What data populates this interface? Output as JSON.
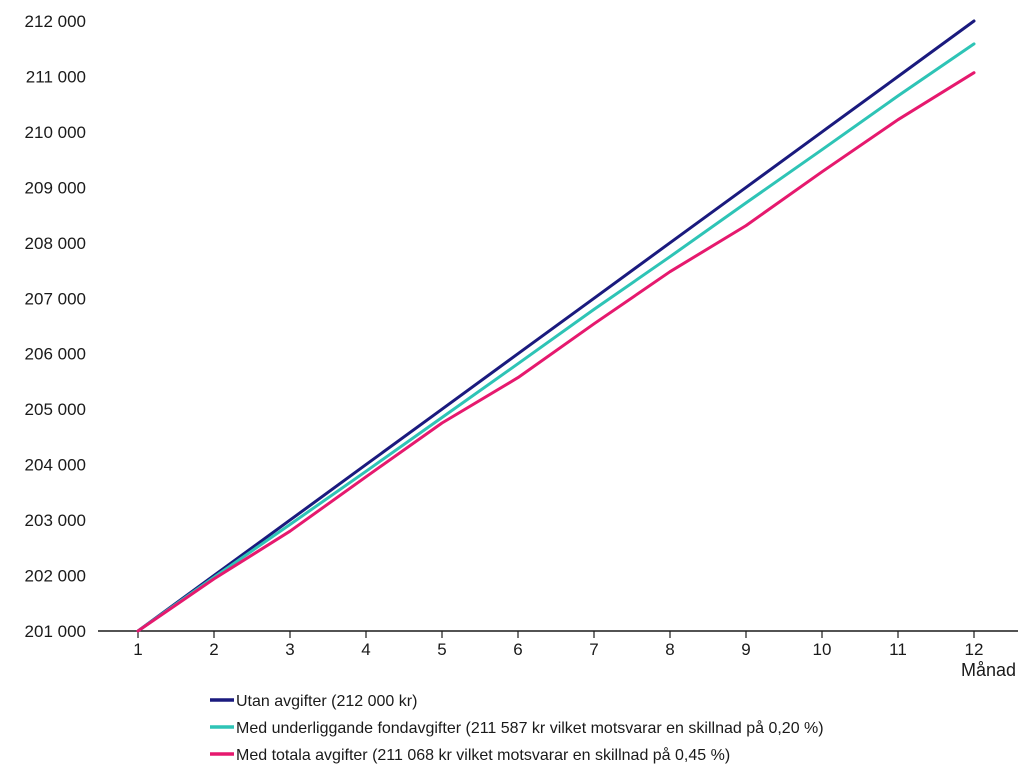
{
  "chart_data": {
    "type": "line",
    "title": "",
    "xlabel": "Månad",
    "ylabel": "",
    "x": [
      1,
      2,
      3,
      4,
      5,
      6,
      7,
      8,
      9,
      10,
      11,
      12
    ],
    "xlim": [
      0.5,
      12.5
    ],
    "ylim": [
      201000,
      212000
    ],
    "yticks": [
      201000,
      202000,
      203000,
      204000,
      205000,
      206000,
      207000,
      208000,
      209000,
      210000,
      211000,
      212000
    ],
    "ytick_labels": [
      "201 000",
      "202 000",
      "203 000",
      "204 000",
      "205 000",
      "206 000",
      "207 000",
      "208 000",
      "209 000",
      "210 000",
      "211 000",
      "212 000"
    ],
    "xtick_labels": [
      "1",
      "2",
      "3",
      "4",
      "5",
      "6",
      "7",
      "8",
      "9",
      "10",
      "11",
      "12"
    ],
    "grid": false,
    "legend_position": "bottom",
    "series": [
      {
        "name": "Utan avgifter (212 000 kr)",
        "color": "#1a1a7e",
        "values": [
          201000,
          202000,
          203000,
          204000,
          205000,
          206000,
          207000,
          208000,
          209000,
          210000,
          211000,
          212000
        ]
      },
      {
        "name": "Med underliggande fondavgifter (211 587 kr vilket motsvarar en skillnad på 0,20 %)",
        "color": "#2ec4b6",
        "values": [
          201000,
          201970,
          202920,
          203880,
          204850,
          205820,
          206800,
          207750,
          208720,
          209680,
          210650,
          211587
        ]
      },
      {
        "name": "Med totala avgifter (211 068 kr vilket motsvarar en skillnad på 0,45 %)",
        "color": "#e6196e",
        "values": [
          201000,
          201940,
          202800,
          203780,
          204750,
          205570,
          206540,
          207480,
          208310,
          209280,
          210220,
          211068
        ]
      }
    ]
  }
}
